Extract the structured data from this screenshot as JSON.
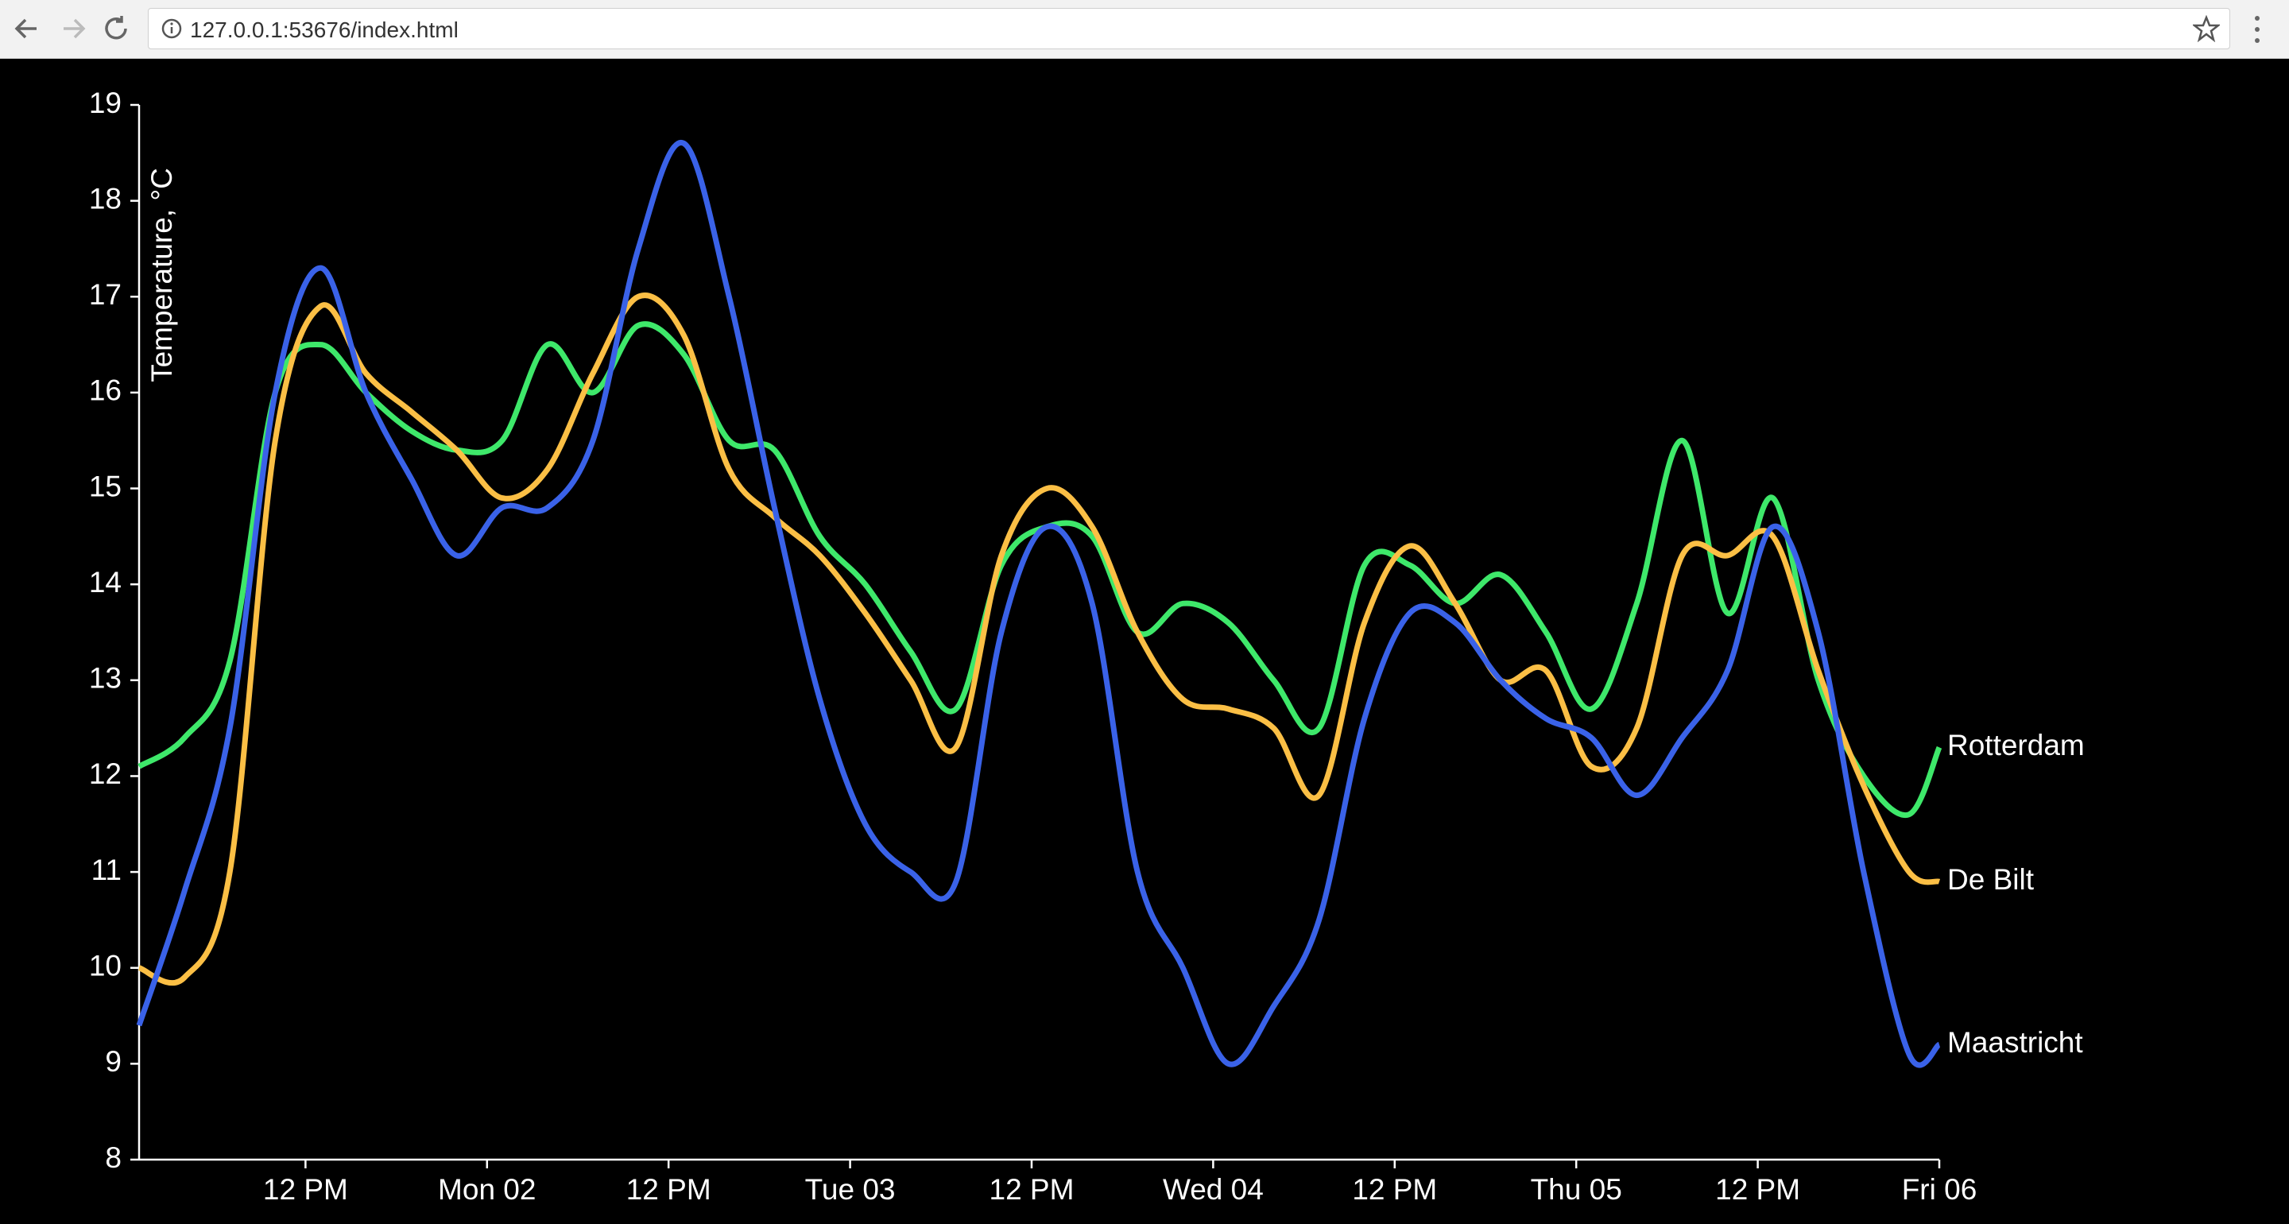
{
  "browser": {
    "url": "127.0.0.1:53676/index.html"
  },
  "chart_data": {
    "type": "line",
    "y_label": "Temperature, °C",
    "x": [
      1,
      4,
      7,
      10,
      13,
      16,
      19,
      22,
      25,
      28,
      31,
      34,
      37,
      40,
      43,
      46,
      49,
      52,
      55,
      58,
      61,
      64,
      67,
      70,
      73,
      76,
      79,
      82,
      85,
      88,
      91,
      94,
      97,
      100,
      103,
      106,
      109,
      112,
      115,
      118,
      120
    ],
    "xlim": [
      1,
      120
    ],
    "xticks": [
      {
        "value": 12,
        "label": "12 PM"
      },
      {
        "value": 24,
        "label": "Mon 02"
      },
      {
        "value": 36,
        "label": "12 PM"
      },
      {
        "value": 48,
        "label": "Tue 03"
      },
      {
        "value": 60,
        "label": "12 PM"
      },
      {
        "value": 72,
        "label": "Wed 04"
      },
      {
        "value": 84,
        "label": "12 PM"
      },
      {
        "value": 96,
        "label": "Thu 05"
      },
      {
        "value": 108,
        "label": "12 PM"
      },
      {
        "value": 120,
        "label": "Fri 06"
      }
    ],
    "ylim": [
      8,
      19
    ],
    "yticks": [
      8,
      9,
      10,
      11,
      12,
      13,
      14,
      15,
      16,
      17,
      18,
      19
    ],
    "series": [
      {
        "name": "Rotterdam",
        "color": "#3ee86a",
        "values": [
          12.1,
          12.4,
          13.2,
          16.0,
          16.5,
          16.0,
          15.6,
          15.4,
          15.5,
          16.5,
          16.0,
          16.7,
          16.4,
          15.5,
          15.4,
          14.5,
          14.0,
          13.3,
          12.7,
          14.2,
          14.6,
          14.5,
          13.5,
          13.8,
          13.6,
          13.0,
          12.5,
          14.2,
          14.2,
          13.8,
          14.1,
          13.5,
          12.7,
          13.8,
          15.5,
          13.7,
          14.9,
          13.0,
          12.0,
          11.6,
          12.3
        ]
      },
      {
        "name": "De Bilt",
        "color": "#fbbf45",
        "values": [
          10.0,
          9.9,
          11.0,
          15.5,
          16.9,
          16.2,
          15.8,
          15.4,
          14.9,
          15.2,
          16.2,
          17.0,
          16.6,
          15.2,
          14.7,
          14.3,
          13.7,
          13.0,
          12.3,
          14.3,
          15.0,
          14.6,
          13.5,
          12.8,
          12.7,
          12.5,
          11.8,
          13.6,
          14.4,
          13.8,
          13.0,
          13.1,
          12.1,
          12.5,
          14.3,
          14.3,
          14.5,
          13.1,
          11.9,
          11.0,
          10.9
        ]
      },
      {
        "name": "Maastricht",
        "color": "#3a62e8",
        "values": [
          9.4,
          10.8,
          12.5,
          16.0,
          17.3,
          16.0,
          15.1,
          14.3,
          14.8,
          14.8,
          15.5,
          17.5,
          18.6,
          17.0,
          14.8,
          12.8,
          11.5,
          11.0,
          10.9,
          13.5,
          14.6,
          13.8,
          11.0,
          10.0,
          9.0,
          9.6,
          10.5,
          12.6,
          13.7,
          13.6,
          13.0,
          12.6,
          12.4,
          11.8,
          12.4,
          13.1,
          14.6,
          13.5,
          11.0,
          9.1,
          9.2
        ]
      }
    ]
  }
}
